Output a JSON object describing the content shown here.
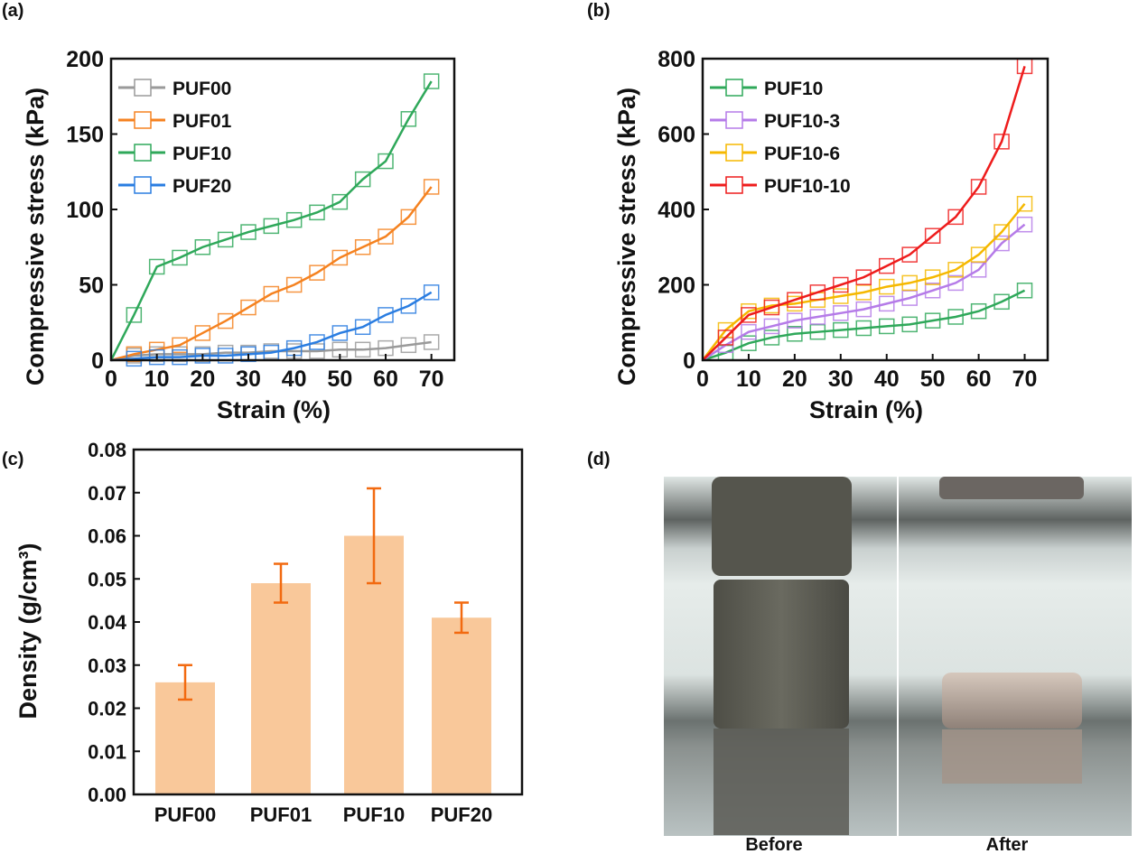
{
  "chart_data": [
    {
      "panel": "(a)",
      "type": "line",
      "xlabel": "Strain (%)",
      "ylabel": "Compressive stress (kPa)",
      "xlim": [
        0,
        75
      ],
      "ylim": [
        0,
        200
      ],
      "xticks": [
        0,
        10,
        20,
        30,
        40,
        50,
        60,
        70
      ],
      "yticks": [
        0,
        50,
        100,
        150,
        200
      ],
      "legend": "top-left",
      "x": [
        0,
        5,
        10,
        15,
        20,
        25,
        30,
        35,
        40,
        45,
        50,
        55,
        60,
        65,
        70
      ],
      "series": [
        {
          "name": "PUF00",
          "color": "#9a9a9a",
          "values": [
            0,
            3,
            4,
            4,
            4,
            5,
            5,
            6,
            6,
            6,
            7,
            7,
            8,
            10,
            12
          ]
        },
        {
          "name": "PUF01",
          "color": "#f58220",
          "values": [
            0,
            4,
            7,
            10,
            18,
            26,
            35,
            44,
            50,
            58,
            68,
            75,
            82,
            95,
            115
          ]
        },
        {
          "name": "PUF10",
          "color": "#2fa85a",
          "values": [
            0,
            30,
            62,
            68,
            75,
            80,
            85,
            89,
            93,
            98,
            105,
            120,
            132,
            160,
            185
          ]
        },
        {
          "name": "PUF20",
          "color": "#2a7de1",
          "values": [
            0,
            1,
            2,
            2,
            3,
            3,
            4,
            5,
            8,
            12,
            18,
            22,
            30,
            36,
            45
          ]
        }
      ]
    },
    {
      "panel": "(b)",
      "type": "line",
      "xlabel": "Strain (%)",
      "ylabel": "Compressive stress (kPa)",
      "xlim": [
        0,
        75
      ],
      "ylim": [
        0,
        800
      ],
      "xticks": [
        0,
        10,
        20,
        30,
        40,
        50,
        60,
        70
      ],
      "yticks": [
        0,
        200,
        400,
        600,
        800
      ],
      "legend": "top-left",
      "x": [
        0,
        5,
        10,
        15,
        20,
        25,
        30,
        35,
        40,
        45,
        50,
        55,
        60,
        65,
        70
      ],
      "series": [
        {
          "name": "PUF10",
          "color": "#2fa85a",
          "values": [
            0,
            20,
            45,
            60,
            70,
            75,
            80,
            85,
            90,
            95,
            105,
            115,
            130,
            155,
            185
          ]
        },
        {
          "name": "PUF10-3",
          "color": "#b57be8",
          "values": [
            0,
            40,
            75,
            90,
            105,
            115,
            125,
            135,
            150,
            165,
            185,
            205,
            240,
            310,
            360
          ]
        },
        {
          "name": "PUF10-6",
          "color": "#f5b800",
          "values": [
            0,
            80,
            130,
            145,
            150,
            160,
            170,
            180,
            195,
            205,
            220,
            240,
            280,
            340,
            415
          ]
        },
        {
          "name": "PUF10-10",
          "color": "#ee1c1c",
          "values": [
            0,
            60,
            120,
            140,
            160,
            180,
            200,
            220,
            250,
            280,
            330,
            380,
            460,
            580,
            780
          ]
        }
      ]
    },
    {
      "panel": "(c)",
      "type": "bar",
      "ylabel": "Density (g/cm³)",
      "ylim": [
        0,
        0.08
      ],
      "yticks": [
        "0.00",
        "0.01",
        "0.02",
        "0.03",
        "0.04",
        "0.05",
        "0.06",
        "0.07",
        "0.08"
      ],
      "categories": [
        "PUF00",
        "PUF01",
        "PUF10",
        "PUF20"
      ],
      "values": [
        0.026,
        0.049,
        0.06,
        0.041
      ],
      "errors": [
        0.004,
        0.0045,
        0.011,
        0.0035
      ],
      "bar_color": "#f9c89a",
      "error_color": "#f26a10"
    }
  ],
  "photo": {
    "label": "(d)",
    "before": "Before",
    "after": "After"
  }
}
